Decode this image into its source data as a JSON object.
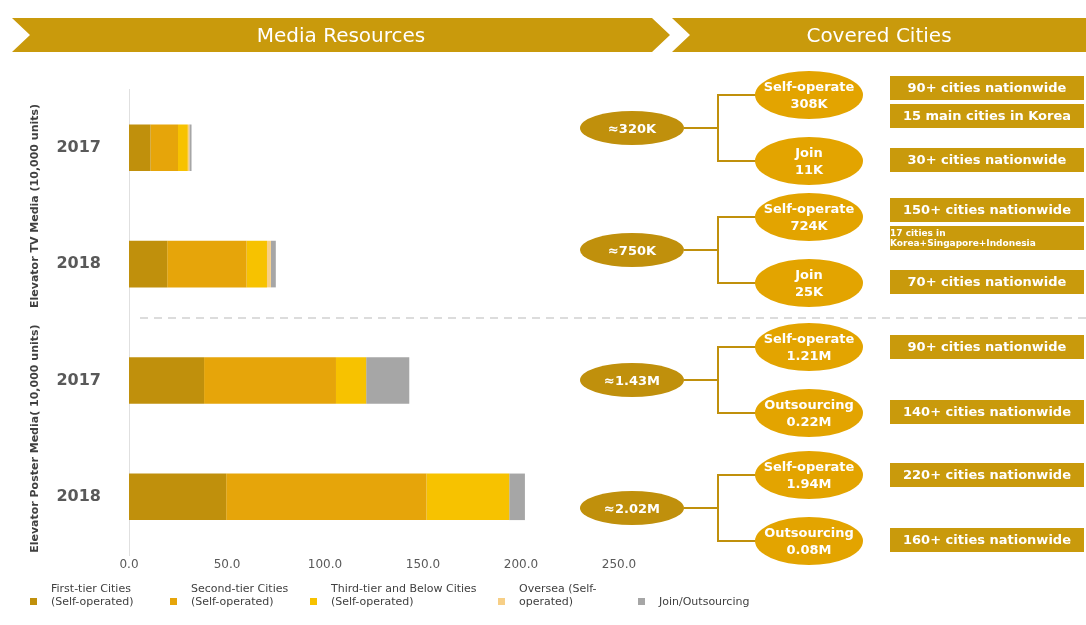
{
  "chart_data": [
    {
      "type": "bar",
      "title": "Media Resources",
      "orientation": "horizontal",
      "stacked": true,
      "categories": [
        "2017",
        "2018",
        "2017",
        "2018"
      ],
      "annotations": [
        "Elevator TV Media (10,000 units)",
        "Elevator Poster Media( 10,000 units)"
      ],
      "series": [
        {
          "name": "First-tier Cities (Self-operated)",
          "color": "#c0900c",
          "values": [
            11.0,
            19.5,
            38.3,
            49.6
          ]
        },
        {
          "name": "Second-tier Cities (Self-operated)",
          "color": "#e6a50a",
          "values": [
            14.0,
            40.5,
            67.3,
            102.2
          ]
        },
        {
          "name": "Third-tier and Below Cities (Self-operated)",
          "color": "#f7c200",
          "values": [
            5.0,
            10.4,
            15.4,
            42.2
          ]
        },
        {
          "name": "Oversea (Self-operated)",
          "color": "#f7cf86",
          "values": [
            0.8,
            2.0,
            0,
            0
          ]
        },
        {
          "name": "Join/Outsourcing",
          "color": "#a6a6a6",
          "values": [
            1.1,
            2.5,
            22.0,
            8.0
          ]
        }
      ],
      "xlim": [
        0,
        250
      ],
      "xticks": [
        {
          "value": 0,
          "label": "0.0"
        },
        {
          "value": 50,
          "label": "50.0"
        },
        {
          "value": 100,
          "label": "100.0"
        },
        {
          "value": 150,
          "label": "150.0"
        },
        {
          "value": 200,
          "label": "200.0"
        },
        {
          "value": 250,
          "label": "250.0"
        }
      ],
      "grid": false,
      "legend": "bottom"
    },
    {
      "type": "other",
      "title": "Covered Cities",
      "annotations": [
        "≈320K",
        "Self-operate\n308K",
        "Join\n11K",
        "90+ cities nationwide\n15 main cities in Korea",
        "30+ cities nationwide",
        "≈750K",
        "Self-operate\n724K",
        "Join\n25K",
        "150+ cities nationwide\n17 cities in Korea+Singapore+Indonesia",
        "70+ cities nationwide",
        "≈1.43M",
        "Self-operate\n1.21M",
        "Outsourcing\n0.22M",
        "90+ cities nationwide",
        "140+ cities nationwide",
        "≈2.02M",
        "Self-operate\n1.94M",
        "Outsourcing\n0.08M",
        "220+ cities nationwide",
        "160+ cities nationwide"
      ]
    }
  ]
}
